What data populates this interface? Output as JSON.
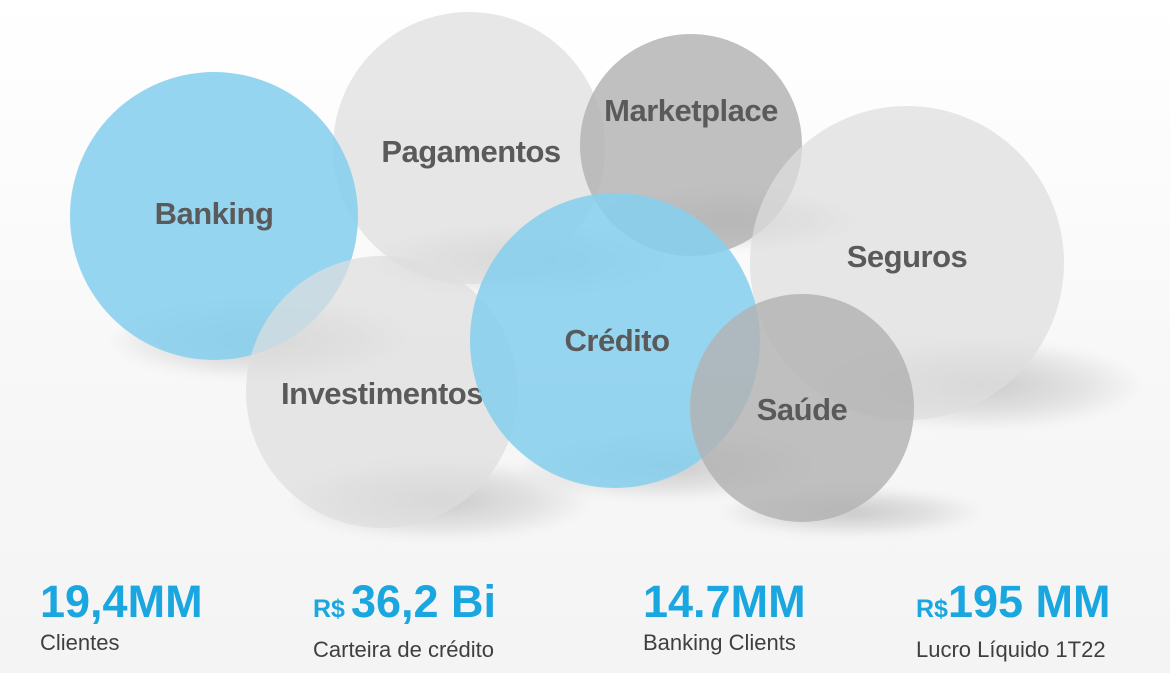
{
  "bubbles": {
    "banking": "Banking",
    "pagamentos": "Pagamentos",
    "marketplace": "Marketplace",
    "seguros": "Seguros",
    "investimentos": "Investimentos",
    "credito": "Crédito",
    "saude": "Saúde"
  },
  "stats": [
    {
      "currency": "",
      "value": "19,4MM",
      "label": "Clientes"
    },
    {
      "currency": "R$",
      "value": "36,2 Bi",
      "label": "Carteira de crédito"
    },
    {
      "currency": "",
      "value": "14.7MM",
      "label": "Banking Clients"
    },
    {
      "currency": "R$",
      "value": "195 MM",
      "label": "Lucro Líquido 1T22"
    }
  ],
  "colors": {
    "accent": "#1aa6df",
    "bubble_blue": "#87cfee",
    "bubble_light": "#dedede",
    "bubble_mid": "#b2b2b2",
    "bubble_text": "#5a5a5a",
    "label_text": "#3f3f3f"
  }
}
